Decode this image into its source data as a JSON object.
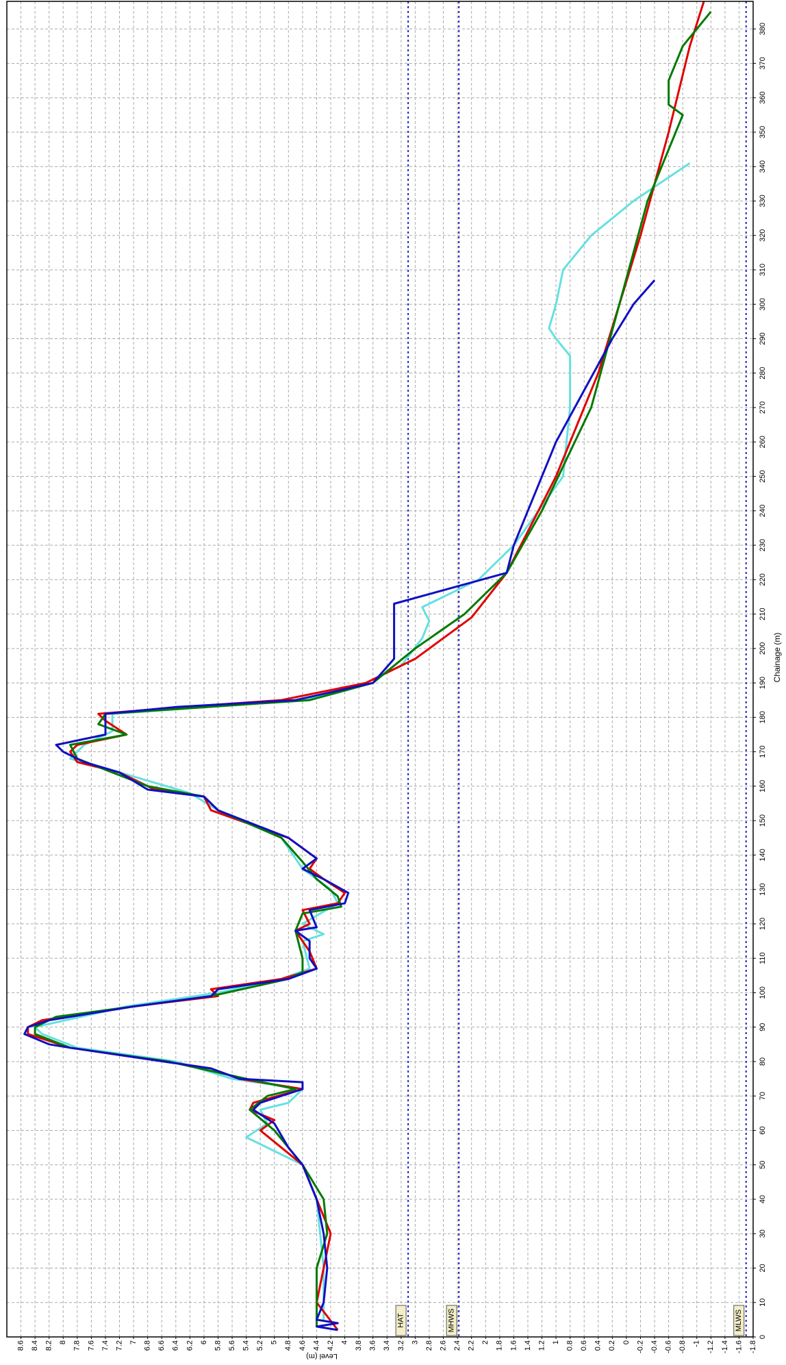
{
  "chart_data": {
    "type": "line",
    "orientation": "rotated",
    "x_label": "Chainage (m)",
    "y_label": "Level (m)",
    "xlim": [
      0,
      388
    ],
    "ylim": [
      8.8,
      -1.8
    ],
    "xticks": [
      0,
      10,
      20,
      30,
      40,
      50,
      60,
      70,
      80,
      90,
      100,
      110,
      120,
      130,
      140,
      150,
      160,
      170,
      180,
      190,
      200,
      210,
      220,
      230,
      240,
      250,
      260,
      270,
      280,
      290,
      300,
      310,
      320,
      330,
      340,
      350,
      360,
      370,
      380
    ],
    "yticks": [
      8.6,
      8.4,
      8.2,
      8,
      7.8,
      7.6,
      7.4,
      7.2,
      7,
      6.8,
      6.6,
      6.4,
      6.2,
      6,
      5.8,
      5.6,
      5.4,
      5.2,
      5,
      4.8,
      4.6,
      4.4,
      4.2,
      4,
      3.8,
      3.6,
      3.4,
      3.2,
      3,
      2.8,
      2.6,
      2.4,
      2.2,
      2,
      1.8,
      1.6,
      1.4,
      1.2,
      1,
      0.8,
      0.6,
      0.4,
      0.2,
      0,
      -0.2,
      -0.4,
      -0.6,
      -0.8,
      -1,
      -1.2,
      -1.4,
      -1.6,
      -1.8
    ],
    "grid": true,
    "reference_lines": [
      {
        "label": "HAT",
        "value": 3.1,
        "color": "#2020c0"
      },
      {
        "label": "MHWS",
        "value": 2.38,
        "color": "#2020c0"
      },
      {
        "label": "MLWS",
        "value": -1.7,
        "color": "#2020c0"
      }
    ],
    "series": [
      {
        "color": "#66e0e0",
        "x": [
          5,
          20,
          40,
          50,
          58,
          62,
          66,
          68,
          72,
          75,
          80,
          84,
          88,
          90,
          96,
          100,
          104,
          107,
          115,
          117,
          120,
          126,
          130,
          136,
          145,
          153,
          158,
          164,
          168,
          172,
          176,
          181,
          185,
          190,
          195,
          203,
          208,
          212,
          220,
          230,
          250,
          270,
          285,
          290,
          293,
          300,
          310,
          320,
          330,
          341
        ],
        "values": [
          4.3,
          4.3,
          4.4,
          4.6,
          5.4,
          5.1,
          5.2,
          4.8,
          4.6,
          5.6,
          6.4,
          7.8,
          8.3,
          8.4,
          7.1,
          5.8,
          4.9,
          4.5,
          4.6,
          4.3,
          4.6,
          4.1,
          4.2,
          4.6,
          4.9,
          5.8,
          6.2,
          7.2,
          7.9,
          7.7,
          7.3,
          7.3,
          4.6,
          3.7,
          3.2,
          2.9,
          2.8,
          2.9,
          2.1,
          1.6,
          0.9,
          0.8,
          0.8,
          1.0,
          1.1,
          1.0,
          0.9,
          0.5,
          -0.1,
          -0.9
        ]
      },
      {
        "color": "#e00000",
        "x": [
          2,
          10,
          20,
          30,
          40,
          50,
          55,
          60,
          63,
          66,
          68,
          72,
          75,
          78,
          84,
          88,
          90,
          92,
          96,
          99,
          101,
          104,
          107,
          112,
          118,
          120,
          124,
          126,
          129,
          133,
          136,
          139,
          145,
          153,
          157,
          159,
          164,
          167,
          170,
          172,
          175,
          179,
          181,
          183,
          185,
          190,
          197,
          209,
          222,
          250,
          280,
          320,
          350,
          375,
          388
        ],
        "values": [
          4.1,
          4.4,
          4.3,
          4.2,
          4.4,
          4.6,
          4.9,
          5.2,
          5.0,
          5.35,
          5.3,
          4.6,
          5.5,
          5.9,
          7.9,
          8.5,
          8.5,
          8.3,
          7.0,
          5.8,
          5.9,
          4.9,
          4.4,
          4.5,
          4.7,
          4.5,
          4.6,
          4.1,
          4.0,
          4.3,
          4.5,
          4.4,
          4.8,
          5.9,
          6.0,
          6.7,
          7.2,
          7.8,
          7.9,
          7.8,
          7.1,
          7.4,
          7.5,
          6.3,
          4.9,
          3.7,
          3.0,
          2.2,
          1.7,
          1.0,
          0.4,
          -0.2,
          -0.6,
          -0.9,
          -1.1
        ]
      },
      {
        "color": "#007a00",
        "x": [
          3,
          10,
          20,
          30,
          40,
          50,
          60,
          66,
          70,
          72,
          75,
          80,
          84,
          88,
          90,
          93,
          96,
          99,
          104,
          106,
          110,
          118,
          123,
          125,
          128,
          133,
          138,
          145,
          153,
          157,
          160,
          164,
          168,
          172,
          175,
          178,
          181,
          185,
          190,
          200,
          210,
          222,
          240,
          270,
          300,
          330,
          355,
          358,
          365,
          375,
          385
        ],
        "values": [
          4.4,
          4.4,
          4.4,
          4.25,
          4.3,
          4.6,
          5.0,
          5.35,
          5.1,
          4.7,
          5.4,
          6.5,
          7.9,
          8.4,
          8.4,
          8.1,
          7.0,
          5.9,
          4.8,
          4.6,
          4.6,
          4.7,
          4.6,
          4.05,
          4.1,
          4.4,
          4.6,
          4.9,
          5.8,
          6.0,
          6.8,
          7.3,
          7.8,
          7.9,
          7.1,
          7.5,
          7.4,
          4.5,
          3.6,
          3.0,
          2.3,
          1.7,
          1.2,
          0.5,
          0.1,
          -0.3,
          -0.8,
          -0.6,
          -0.6,
          -0.8,
          -1.2
        ]
      },
      {
        "color": "#1010c0",
        "x": [
          2,
          3,
          4,
          5,
          10,
          20,
          30,
          40,
          50,
          55,
          62,
          66,
          68,
          72,
          74,
          75,
          78,
          84,
          85,
          88,
          90,
          92,
          96,
          99,
          101,
          104,
          107,
          110,
          115,
          118,
          119,
          124,
          126,
          129,
          133,
          136,
          139,
          145,
          153,
          157,
          159,
          164,
          167,
          170,
          172,
          175,
          181,
          183,
          185,
          190,
          197,
          205,
          213,
          222,
          230,
          260,
          290,
          300,
          307
        ],
        "values": [
          4.1,
          4.4,
          4.1,
          4.4,
          4.3,
          4.25,
          4.3,
          4.4,
          4.6,
          4.8,
          5.0,
          5.3,
          5.2,
          4.6,
          4.6,
          5.5,
          5.9,
          7.9,
          8.2,
          8.55,
          8.5,
          8.2,
          7.0,
          5.9,
          5.8,
          4.8,
          4.4,
          4.5,
          4.5,
          4.7,
          4.4,
          4.5,
          4.0,
          3.95,
          4.3,
          4.6,
          4.4,
          4.8,
          5.8,
          6.0,
          6.8,
          7.2,
          7.7,
          8.0,
          8.1,
          7.4,
          7.4,
          6.4,
          4.7,
          3.6,
          3.3,
          3.3,
          3.3,
          1.7,
          1.6,
          1.0,
          0.2,
          -0.1,
          -0.4
        ]
      }
    ]
  }
}
